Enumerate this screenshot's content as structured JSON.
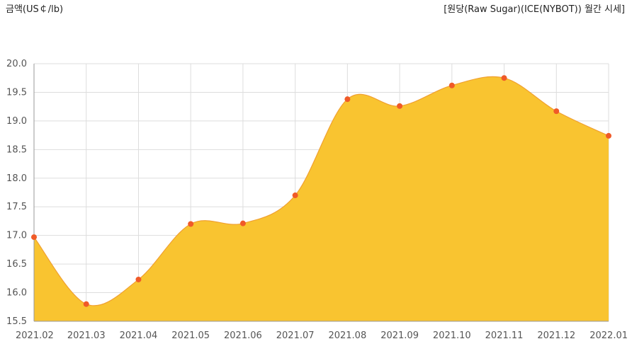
{
  "chart_data": {
    "type": "area",
    "title": "[원당(Raw Sugar)(ICE(NYBOT)) 월간 시세]",
    "ylabel": "금액(US￠/lb)",
    "xlabel": "",
    "categories": [
      "2021.02",
      "2021.03",
      "2021.04",
      "2021.05",
      "2021.06",
      "2021.07",
      "2021.08",
      "2021.09",
      "2021.10",
      "2021.11",
      "2021.12",
      "2022.01"
    ],
    "series": [
      {
        "values": [
          16.97,
          15.8,
          16.23,
          17.2,
          17.21,
          17.7,
          19.38,
          19.26,
          19.62,
          19.75,
          19.17,
          18.74
        ]
      }
    ],
    "ylim": [
      15.5,
      20.0
    ],
    "yticks": [
      "20.0",
      "19.5",
      "19.0",
      "18.5",
      "18.0",
      "17.5",
      "17.0",
      "16.5",
      "16.0",
      "15.5"
    ],
    "grid": true,
    "colors": {
      "fill": "#f9c430",
      "line": "#f0a030",
      "marker": "#f05a28",
      "grid": "#dddddd"
    }
  }
}
